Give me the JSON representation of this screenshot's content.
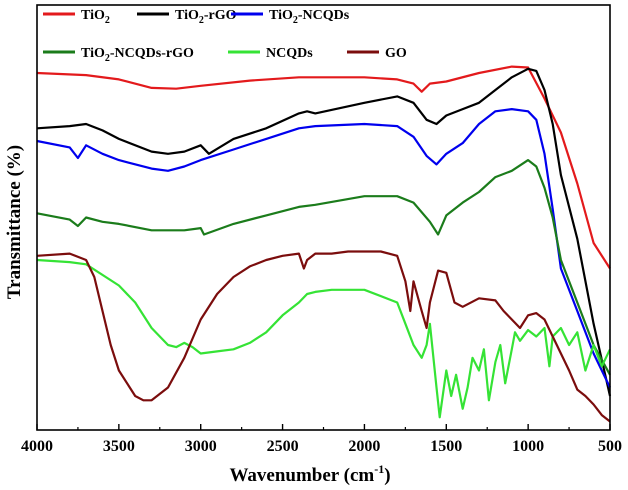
{
  "chart_data": {
    "type": "line",
    "xlabel": "Wavenumber (cm",
    "xlabel_sup": "-1",
    "xlabel_tail": ")",
    "ylabel": "Transmittance (%)",
    "xlim": [
      4000,
      500
    ],
    "ylim": [
      0,
      100
    ],
    "x_ticks": [
      "4000",
      "3500",
      "3000",
      "2500",
      "2000",
      "1500",
      "1000",
      "500"
    ],
    "grid": false,
    "legend_position": "top-left",
    "series": [
      {
        "name": "TiO2",
        "label": "TiO",
        "sub": "2",
        "suffix": "",
        "color": "#e31a1c",
        "x": [
          4000,
          3700,
          3500,
          3300,
          3150,
          3000,
          2700,
          2400,
          2200,
          2000,
          1800,
          1700,
          1650,
          1600,
          1500,
          1300,
          1100,
          1000,
          900,
          800,
          700,
          600,
          500
        ],
        "y": [
          84.0,
          83.5,
          82.5,
          80.5,
          80.3,
          81.0,
          82.2,
          83.0,
          83.0,
          83.0,
          82.5,
          81.5,
          79.6,
          81.5,
          82.0,
          84.0,
          85.5,
          85.3,
          78.0,
          70.0,
          58.0,
          44.0,
          38.0
        ]
      },
      {
        "name": "TiO2-rGO",
        "label": "TiO",
        "sub": "2",
        "suffix": "-rGO",
        "color": "#000000",
        "x": [
          4000,
          3800,
          3700,
          3600,
          3500,
          3300,
          3200,
          3100,
          3000,
          2950,
          2800,
          2600,
          2400,
          2350,
          2300,
          2000,
          1800,
          1700,
          1620,
          1560,
          1500,
          1400,
          1300,
          1200,
          1100,
          1000,
          950,
          900,
          850,
          800,
          700,
          600,
          500
        ],
        "y": [
          71.0,
          71.5,
          72.0,
          70.5,
          68.5,
          65.5,
          65.0,
          65.5,
          67.0,
          65.0,
          68.5,
          71.0,
          74.5,
          75.0,
          74.5,
          77.0,
          78.5,
          77.0,
          73.0,
          72.0,
          74.0,
          75.5,
          77.0,
          80.0,
          83.0,
          85.0,
          84.5,
          80.0,
          72.0,
          60.0,
          45.0,
          25.0,
          8.0
        ]
      },
      {
        "name": "TiO2-NCQDs",
        "label": "TiO",
        "sub": "2",
        "suffix": "-NCQDs",
        "color": "#0000ee",
        "x": [
          4000,
          3800,
          3750,
          3700,
          3600,
          3500,
          3300,
          3200,
          3100,
          3000,
          2800,
          2600,
          2400,
          2300,
          2000,
          1800,
          1700,
          1620,
          1560,
          1500,
          1400,
          1300,
          1200,
          1100,
          1000,
          950,
          900,
          850,
          800,
          700,
          600,
          500
        ],
        "y": [
          68.0,
          66.5,
          64.0,
          67.0,
          65.0,
          63.5,
          61.5,
          61.0,
          62.0,
          63.5,
          66.0,
          68.5,
          71.0,
          71.5,
          72.0,
          71.5,
          69.0,
          64.5,
          62.5,
          65.0,
          67.5,
          72.0,
          75.0,
          75.5,
          75.0,
          73.0,
          65.0,
          52.0,
          38.0,
          28.0,
          18.0,
          10.0
        ]
      },
      {
        "name": "TiO2-NCQDs-rGO",
        "label": "TiO",
        "sub": "2",
        "suffix": "-NCQDs-rGO",
        "color": "#1b7c1b",
        "x": [
          4000,
          3800,
          3750,
          3700,
          3600,
          3500,
          3300,
          3100,
          3000,
          2980,
          2800,
          2600,
          2400,
          2300,
          2000,
          1800,
          1700,
          1600,
          1550,
          1500,
          1400,
          1300,
          1200,
          1100,
          1000,
          950,
          900,
          850,
          800,
          700,
          600,
          500
        ],
        "y": [
          51.0,
          49.5,
          48.0,
          50.0,
          49.0,
          48.5,
          47.0,
          47.0,
          47.5,
          46.0,
          48.5,
          50.5,
          52.5,
          53.0,
          55.0,
          55.0,
          53.5,
          49.0,
          46.0,
          50.5,
          53.5,
          56.0,
          59.5,
          61.0,
          63.5,
          62.0,
          57.0,
          50.0,
          40.0,
          30.0,
          20.0,
          13.0
        ]
      },
      {
        "name": "NCQDs",
        "label": "NCQDs",
        "sub": "",
        "suffix": "",
        "color": "#35e335",
        "x": [
          4000,
          3800,
          3700,
          3500,
          3400,
          3300,
          3200,
          3150,
          3100,
          3050,
          3000,
          2900,
          2800,
          2700,
          2600,
          2500,
          2400,
          2350,
          2300,
          2200,
          2000,
          1800,
          1750,
          1700,
          1650,
          1620,
          1600,
          1560,
          1540,
          1500,
          1470,
          1440,
          1400,
          1370,
          1340,
          1300,
          1270,
          1240,
          1200,
          1170,
          1140,
          1100,
          1080,
          1050,
          1000,
          950,
          900,
          870,
          850,
          800,
          750,
          700,
          650,
          600,
          550,
          500
        ],
        "y": [
          40.0,
          39.5,
          39.0,
          34.0,
          30.0,
          24.0,
          20.0,
          19.5,
          20.5,
          19.5,
          18.0,
          18.5,
          19.0,
          20.5,
          23.0,
          27.0,
          30.0,
          32.0,
          32.5,
          33.0,
          33.0,
          30.0,
          25.0,
          20.0,
          17.0,
          20.0,
          25.0,
          10.0,
          3.0,
          14.0,
          8.0,
          13.0,
          5.0,
          10.0,
          17.0,
          14.0,
          19.0,
          7.0,
          16.0,
          20.0,
          11.0,
          19.0,
          23.0,
          21.0,
          23.5,
          22.0,
          24.0,
          15.0,
          22.0,
          24.0,
          20.0,
          23.0,
          14.0,
          20.0,
          15.0,
          19.0
        ]
      },
      {
        "name": "GO",
        "label": "GO",
        "sub": "",
        "suffix": "",
        "color": "#7b0d0d",
        "x": [
          4000,
          3800,
          3700,
          3650,
          3600,
          3550,
          3500,
          3400,
          3350,
          3300,
          3200,
          3100,
          3000,
          2900,
          2800,
          2700,
          2600,
          2500,
          2400,
          2370,
          2350,
          2300,
          2200,
          2100,
          2000,
          1900,
          1800,
          1750,
          1720,
          1700,
          1650,
          1620,
          1600,
          1550,
          1500,
          1450,
          1400,
          1300,
          1200,
          1150,
          1100,
          1050,
          1000,
          950,
          900,
          850,
          800,
          750,
          700,
          650,
          600,
          550,
          500
        ],
        "y": [
          41.0,
          41.5,
          40.0,
          36.0,
          28.0,
          20.0,
          14.0,
          8.0,
          7.0,
          7.0,
          10.0,
          17.0,
          26.0,
          32.0,
          36.0,
          38.5,
          40.0,
          41.0,
          41.5,
          38.0,
          40.0,
          41.5,
          41.5,
          42.0,
          42.0,
          42.0,
          41.0,
          35.0,
          28.0,
          35.0,
          28.0,
          24.0,
          30.0,
          37.5,
          37.0,
          30.0,
          29.0,
          31.0,
          30.5,
          28.0,
          26.0,
          24.0,
          27.0,
          27.5,
          26.0,
          22.0,
          18.0,
          14.0,
          9.5,
          8.0,
          6.0,
          3.5,
          2.0
        ]
      }
    ]
  }
}
